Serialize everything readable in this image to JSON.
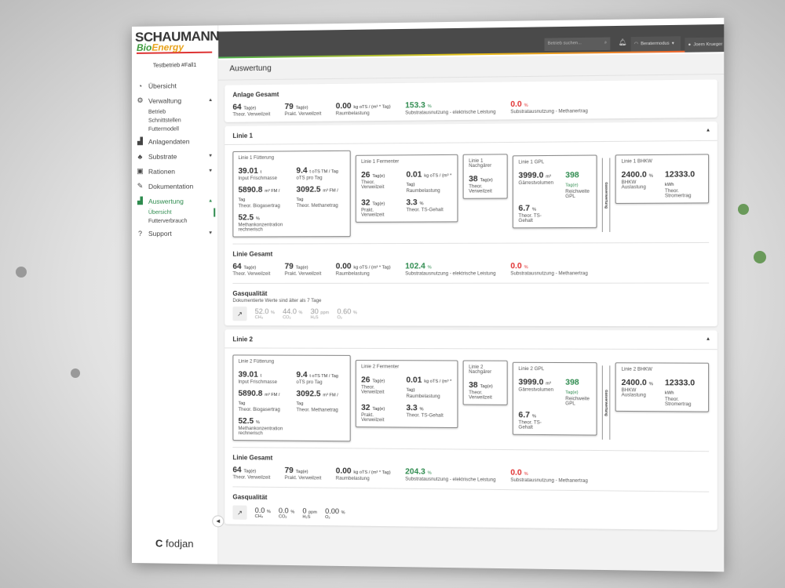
{
  "brand": {
    "logo_top": "SCHAUMANN",
    "logo_bio": "Bio",
    "logo_energy": "Energy",
    "company": "fodjan"
  },
  "sidebar": {
    "betrieb": "Testbetrieb #Fall1",
    "items": [
      {
        "label": "Übersicht",
        "icon": "gauge-icon"
      },
      {
        "label": "Verwaltung",
        "icon": "gear-icon",
        "subs": [
          "Betrieb",
          "Schnittstellen",
          "Futtermodell"
        ]
      },
      {
        "label": "Anlagendaten",
        "icon": "chart-icon"
      },
      {
        "label": "Substrate",
        "icon": "plant-icon"
      },
      {
        "label": "Rationen",
        "icon": "ration-icon"
      },
      {
        "label": "Dokumentation",
        "icon": "edit-icon"
      },
      {
        "label": "Auswertung",
        "icon": "chart-icon",
        "subs": [
          "Übersicht",
          "Futterverbrauch"
        ]
      },
      {
        "label": "Support",
        "icon": "help-icon"
      }
    ]
  },
  "topbar": {
    "search_placeholder": "Betrieb suchen...",
    "mode": "Beratermodus",
    "user": "Joern Krueger"
  },
  "page_title": "Auswertung",
  "colors": {
    "accent": "#2e8b4e",
    "negative": "#e03030",
    "topbar": "#4a4a4a"
  },
  "anlage": {
    "title": "Anlage Gesamt",
    "kpis": [
      {
        "v": "64",
        "u": "Tag(e)",
        "l": "Theor. Verweilzeit"
      },
      {
        "v": "79",
        "u": "Tag(e)",
        "l": "Prakt. Verweilzeit"
      },
      {
        "v": "0.00",
        "u": "kg oTS / (m³ * Tag)",
        "l": "Raumbelastung"
      },
      {
        "v": "153.3",
        "u": "%",
        "l": "Substratausnutzung - elektrische Leistung"
      },
      {
        "v": "0.0",
        "u": "%",
        "l": "Substratausnutzung - Methanertrag"
      }
    ]
  },
  "linien": [
    {
      "title": "Linie 1",
      "fuetterung": {
        "title": "Linie 1 Fütterung",
        "kpis": [
          {
            "v": "39.01",
            "u": "t",
            "l": "Input Frischmasse"
          },
          {
            "v": "9.4",
            "u": "t oTS TM / Tag",
            "l": "oTS pro Tag"
          },
          {
            "v": "5890.8",
            "u": "m³ FM / Tag",
            "l": "Theor. Biogasertrag"
          },
          {
            "v": "3092.5",
            "u": "m³ FM / Tag",
            "l": "Theor. Methanetrag"
          },
          {
            "v": "52.5",
            "u": "%",
            "l": "Methankonzentration rechnerisch"
          }
        ]
      },
      "fermenter": {
        "title": "Linie 1 Fermenter",
        "kpis": [
          {
            "v": "26",
            "u": "Tag(e)",
            "l": "Theor. Verweilzeit"
          },
          {
            "v": "0.01",
            "u": "kg oTS / (m³ * Tag)",
            "l": "Raumbelastung"
          },
          {
            "v": "32",
            "u": "Tag(e)",
            "l": "Prakt. Verweilzeit"
          },
          {
            "v": "3.3",
            "u": "%",
            "l": "Theor. TS-Gehalt"
          }
        ]
      },
      "nachgaerer": {
        "title": "Linie 1 Nachgärer",
        "kpis": [
          {
            "v": "38",
            "u": "Tag(e)",
            "l": "Theor. Verweilzeit"
          }
        ]
      },
      "gpl": {
        "title": "Linie 1 GPL",
        "kpis": [
          {
            "v": "3999.0",
            "u": "m³",
            "l": "Gärrestvolumen"
          },
          {
            "v": "398",
            "u": "Tag(e)",
            "l": "Reichweite GPL"
          },
          {
            "v": "6.7",
            "u": "%",
            "l": "Theor. TS-Gehalt"
          }
        ]
      },
      "separator": "Gasverwertung",
      "bhkw": {
        "title": "Linie 1 BHKW",
        "kpis": [
          {
            "v": "2400.0",
            "u": "%",
            "l": "BHKW Auslastung"
          },
          {
            "v": "12333.0",
            "u": "kWh",
            "l": "Theor. Stromertrag"
          }
        ]
      },
      "gesamt": {
        "title": "Linie Gesamt",
        "kpis": [
          {
            "v": "64",
            "u": "Tag(e)",
            "l": "Theor. Verweilzeit"
          },
          {
            "v": "79",
            "u": "Tag(e)",
            "l": "Prakt. Verweilzeit"
          },
          {
            "v": "0.00",
            "u": "kg oTS / (m³ * Tag)",
            "l": "Raumbelastung"
          },
          {
            "v": "102.4",
            "u": "%",
            "l": "Substratausnutzung - elektrische Leistung"
          },
          {
            "v": "0.0",
            "u": "%",
            "l": "Substratausnutzung - Methanertrag"
          }
        ]
      },
      "gas": {
        "title": "Gasqualität",
        "note": "Dokumentierte Werte sind älter als 7 Tage",
        "values": [
          {
            "v": "52.0",
            "u": "%",
            "l": "CH₄"
          },
          {
            "v": "44.0",
            "u": "%",
            "l": "CO₂"
          },
          {
            "v": "30",
            "u": "ppm",
            "l": "H₂S"
          },
          {
            "v": "0.60",
            "u": "%",
            "l": "O₂"
          }
        ]
      }
    },
    {
      "title": "Linie 2",
      "fuetterung": {
        "title": "Linie 2 Fütterung",
        "kpis": [
          {
            "v": "39.01",
            "u": "t",
            "l": "Input Frischmasse"
          },
          {
            "v": "9.4",
            "u": "t oTS TM / Tag",
            "l": "oTS pro Tag"
          },
          {
            "v": "5890.8",
            "u": "m³ FM / Tag",
            "l": "Theor. Biogasertrag"
          },
          {
            "v": "3092.5",
            "u": "m³ FM / Tag",
            "l": "Theor. Methanetrag"
          },
          {
            "v": "52.5",
            "u": "%",
            "l": "Methankonzentration rechnerisch"
          }
        ]
      },
      "fermenter": {
        "title": "Linie 2 Fermenter",
        "kpis": [
          {
            "v": "26",
            "u": "Tag(e)",
            "l": "Theor. Verweilzeit"
          },
          {
            "v": "0.01",
            "u": "kg oTS / (m³ * Tag)",
            "l": "Raumbelastung"
          },
          {
            "v": "32",
            "u": "Tag(e)",
            "l": "Prakt. Verweilzeit"
          },
          {
            "v": "3.3",
            "u": "%",
            "l": "Theor. TS-Gehalt"
          }
        ]
      },
      "nachgaerer": {
        "title": "Linie 2 Nachgärer",
        "kpis": [
          {
            "v": "38",
            "u": "Tag(e)",
            "l": "Theor. Verweilzeit"
          }
        ]
      },
      "gpl": {
        "title": "Linie 2 GPL",
        "kpis": [
          {
            "v": "3999.0",
            "u": "m³",
            "l": "Gärrestvolumen"
          },
          {
            "v": "398",
            "u": "Tag(e)",
            "l": "Reichweite GPL"
          },
          {
            "v": "6.7",
            "u": "%",
            "l": "Theor. TS-Gehalt"
          }
        ]
      },
      "separator": "Gasverwertung",
      "bhkw": {
        "title": "Linie 2 BHKW",
        "kpis": [
          {
            "v": "2400.0",
            "u": "%",
            "l": "BHKW Auslastung"
          },
          {
            "v": "12333.0",
            "u": "kWh",
            "l": "Theor. Stromertrag"
          }
        ]
      },
      "gesamt": {
        "title": "Linie Gesamt",
        "kpis": [
          {
            "v": "64",
            "u": "Tag(e)",
            "l": "Theor. Verweilzeit"
          },
          {
            "v": "79",
            "u": "Tag(e)",
            "l": "Prakt. Verweilzeit"
          },
          {
            "v": "0.00",
            "u": "kg oTS / (m³ * Tag)",
            "l": "Raumbelastung"
          },
          {
            "v": "204.3",
            "u": "%",
            "l": "Substratausnutzung - elektrische Leistung"
          },
          {
            "v": "0.0",
            "u": "%",
            "l": "Substratausnutzung - Methanertrag"
          }
        ]
      },
      "gas": {
        "title": "Gasqualität",
        "note": "",
        "values": [
          {
            "v": "0.0",
            "u": "%",
            "l": "CH₄"
          },
          {
            "v": "0.0",
            "u": "%",
            "l": "CO₂"
          },
          {
            "v": "0",
            "u": "ppm",
            "l": "H₂S"
          },
          {
            "v": "0.00",
            "u": "%",
            "l": "O₂"
          }
        ]
      }
    }
  ]
}
